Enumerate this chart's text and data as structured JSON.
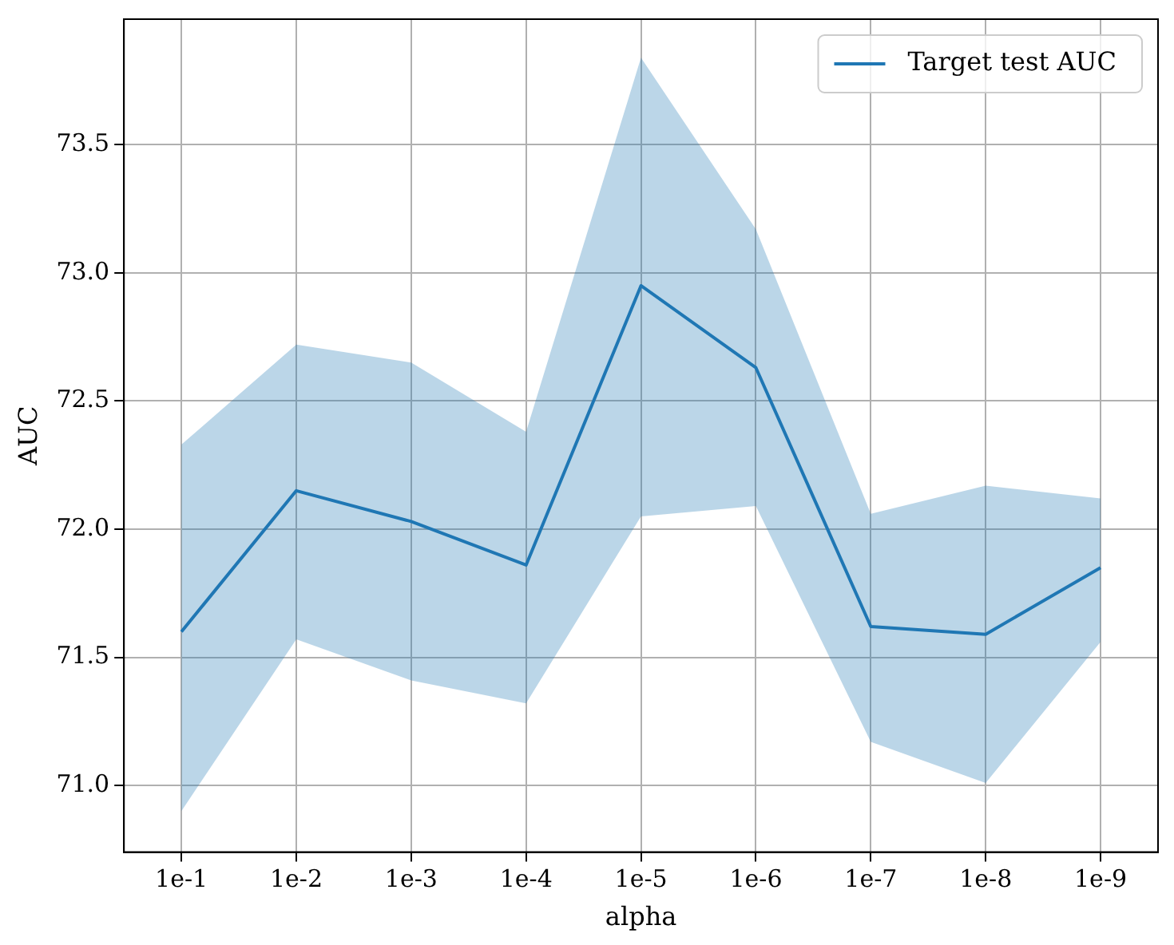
{
  "chart_data": {
    "type": "line",
    "xlabel": "alpha",
    "ylabel": "AUC",
    "categories": [
      "1e-1",
      "1e-2",
      "1e-3",
      "1e-4",
      "1e-5",
      "1e-6",
      "1e-7",
      "1e-8",
      "1e-9"
    ],
    "series": [
      {
        "name": "Target test AUC",
        "color": "#1f77b4",
        "values": [
          71.6,
          72.15,
          72.03,
          71.86,
          72.95,
          72.63,
          71.62,
          71.59,
          71.85
        ],
        "lower": [
          70.9,
          71.57,
          71.41,
          71.32,
          72.05,
          72.09,
          71.17,
          71.01,
          71.56
        ],
        "upper": [
          72.33,
          72.72,
          72.65,
          72.38,
          73.84,
          73.17,
          72.06,
          72.17,
          72.12
        ]
      }
    ],
    "ylim": [
      70.74,
      73.99
    ],
    "yticks": [
      {
        "value": 71,
        "label": "71.0"
      },
      {
        "value": 71.5,
        "label": "71.5"
      },
      {
        "value": 72,
        "label": "72.0"
      },
      {
        "value": 72.5,
        "label": "72.5"
      },
      {
        "value": 73,
        "label": "73.0"
      },
      {
        "value": 73.5,
        "label": "73.5"
      }
    ],
    "grid": true,
    "legend": "top right",
    "marker": "none",
    "line_style": "solid"
  }
}
